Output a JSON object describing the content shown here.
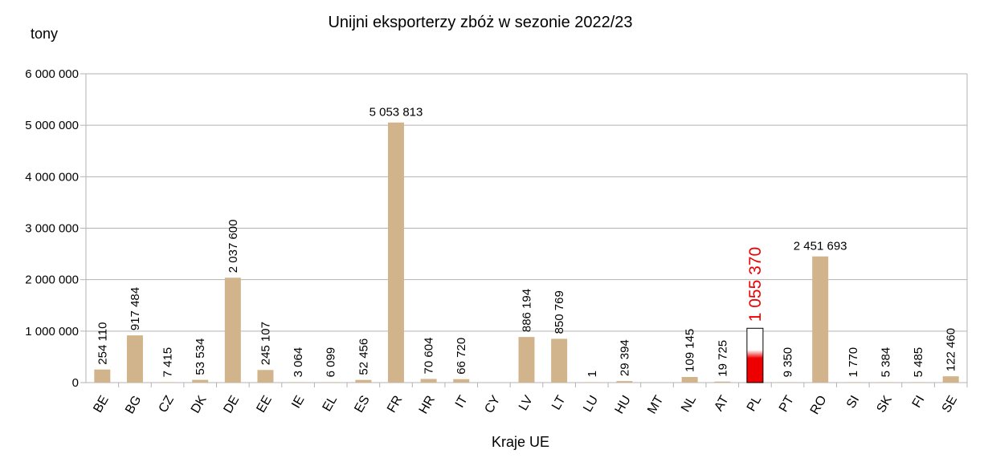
{
  "chart_data": {
    "type": "bar",
    "title": "Unijni eksporterzy zbóż w sezonie 2022/23",
    "ylabel": "tony",
    "xlabel": "Kraje UE",
    "ylim": [
      0,
      6000000
    ],
    "yticks": [
      0,
      1000000,
      2000000,
      3000000,
      4000000,
      5000000,
      6000000
    ],
    "ytick_labels": [
      "0",
      "1 000 000",
      "2 000 000",
      "3 000 000",
      "4 000 000",
      "5 000 000",
      "6 000 000"
    ],
    "grid": true,
    "highlight": "PL",
    "bar_color": "#d2b48c",
    "highlight_color": "#ee0000",
    "highlight_fill_fraction": 0.45,
    "categories": [
      "BE",
      "BG",
      "CZ",
      "DK",
      "DE",
      "EE",
      "IE",
      "EL",
      "ES",
      "FR",
      "HR",
      "IT",
      "CY",
      "LV",
      "LT",
      "LU",
      "HU",
      "MT",
      "NL",
      "AT",
      "PL",
      "PT",
      "RO",
      "SI",
      "SK",
      "FI",
      "SE"
    ],
    "values": [
      254110,
      917484,
      7415,
      53534,
      2037600,
      245107,
      3064,
      6099,
      52456,
      5053813,
      70604,
      66720,
      null,
      886194,
      850769,
      1,
      29394,
      null,
      109145,
      19725,
      1055370,
      9350,
      2451693,
      1770,
      5384,
      5485,
      122460
    ],
    "value_labels": [
      "254 110",
      "917 484",
      "7 415",
      "53 534",
      "2 037 600",
      "245 107",
      "3 064",
      "6 099",
      "52 456",
      "5 053 813",
      "70 604",
      "66 720",
      "",
      "886 194",
      "850 769",
      "1",
      "29 394",
      "",
      "109 145",
      "19 725",
      "1 055 370",
      "9 350",
      "2 451 693",
      "1 770",
      "5 384",
      "5 485",
      "122 460"
    ],
    "label_horizontal": [
      "FR",
      "RO"
    ]
  }
}
